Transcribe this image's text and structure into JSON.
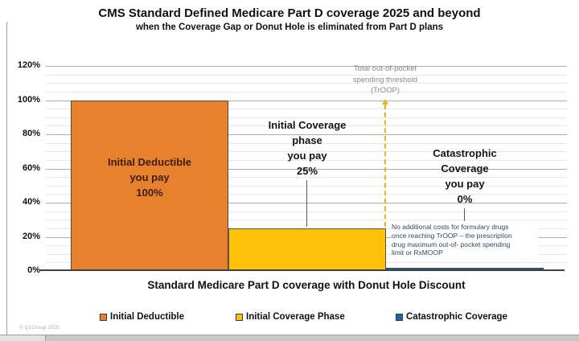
{
  "page": {
    "copyright": "© Q1Group 2025"
  },
  "chart_data": {
    "type": "bar",
    "title": "CMS Standard Defined Medicare Part D coverage 2025 and beyond",
    "subtitle": "when the Coverage Gap or Donut Hole is eliminated from Part D plans",
    "xlabel": "Standard Medicare Part D coverage with Donut Hole Discount",
    "ylabel": "",
    "ylim": [
      0,
      120
    ],
    "ytick_step": 20,
    "yticks": [
      "0%",
      "20%",
      "40%",
      "60%",
      "80%",
      "100%",
      "120%"
    ],
    "grid": "major-and-minor-horizontal",
    "legend_position": "bottom",
    "categories": [
      "Initial Deductible",
      "Initial Coverage Phase",
      "Catastrophic Coverage"
    ],
    "values": [
      100,
      25,
      0
    ],
    "colors": [
      "#E8812D",
      "#FDC10A",
      "#2061A8"
    ],
    "bar_labels": [
      "Initial Deductible\nyou pay\n100%",
      "Initial Coverage\nphase\nyou pay\n25%",
      "Catastrophic\nCoverage\nyou pay\n0%"
    ],
    "annotations": {
      "troop": "Total out-of-pocket\nspending threshold\n(TrOOP)",
      "catastrophic_note": "No additional costs for formulary drugs\nonce reaching TrOOP – the prescription\ndrug maximum out-of- pocket spending\nlimit or RxMOOP"
    },
    "legend": [
      {
        "label": "Initial Deductible",
        "color": "#E8812D"
      },
      {
        "label": "Initial Coverage Phase",
        "color": "#FDC10A"
      },
      {
        "label": "Catastrophic Coverage",
        "color": "#2061A8"
      }
    ]
  }
}
